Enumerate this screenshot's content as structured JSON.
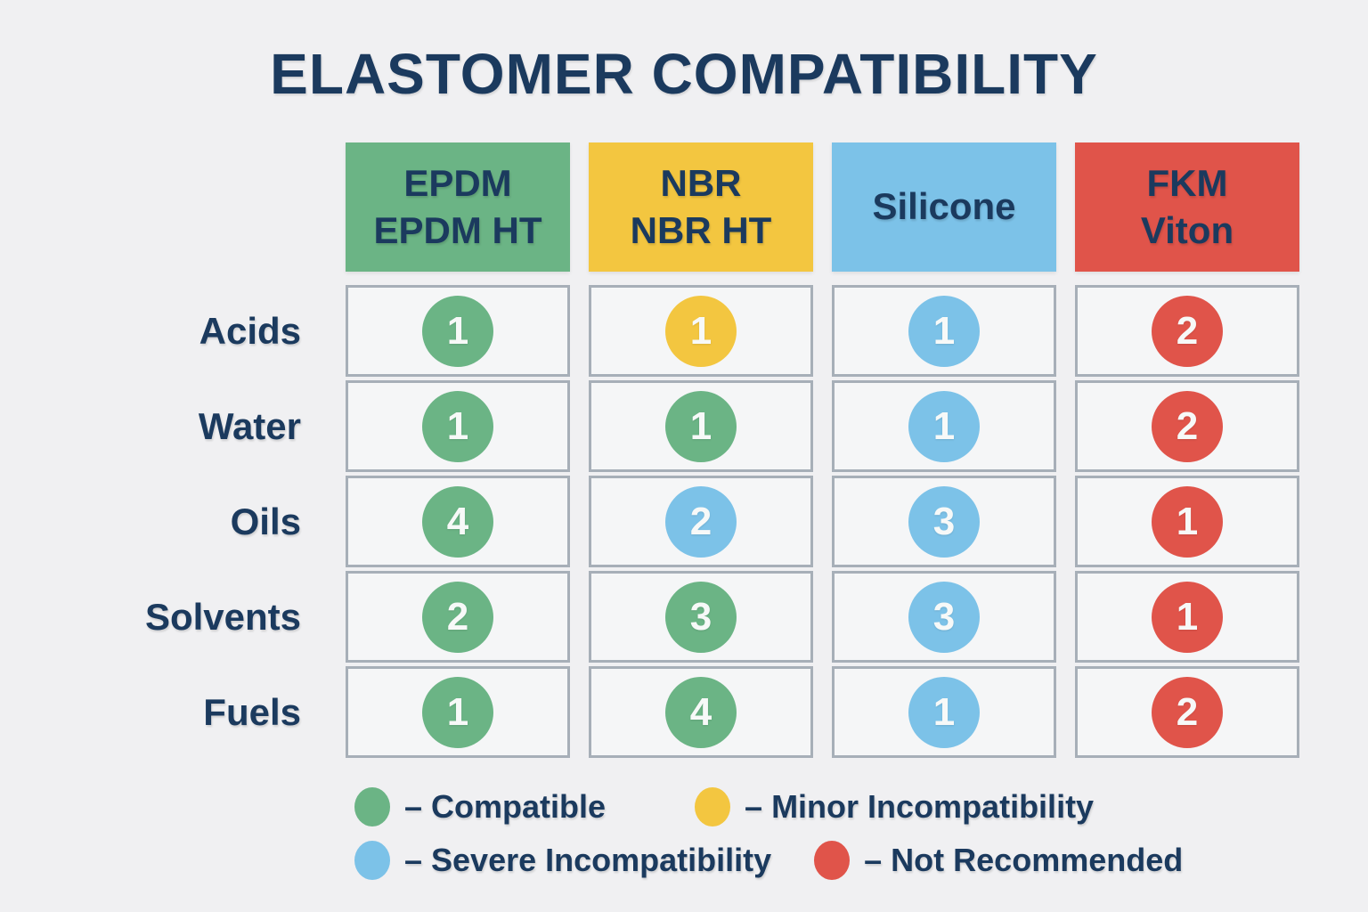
{
  "title": "ELASTOMER COMPATIBILITY",
  "colors": {
    "green": "#6bb485",
    "yellow": "#f3c640",
    "blue": "#7cc2e8",
    "red": "#e0544a",
    "navy": "#1b3a5e",
    "cell_background": "#f5f6f7",
    "cell_border": "#a7afb8",
    "page_background": "#f0f0f2"
  },
  "chart_data": {
    "type": "table",
    "title": "ELASTOMER COMPATIBILITY",
    "columns": [
      {
        "id": "epdm",
        "label": "EPDM\nEPDM HT",
        "color": "green"
      },
      {
        "id": "nbr",
        "label": "NBR\nNBR HT",
        "color": "yellow"
      },
      {
        "id": "silicone",
        "label": "Silicone",
        "color": "blue"
      },
      {
        "id": "fkm",
        "label": "FKM\nViton",
        "color": "red"
      }
    ],
    "rows": [
      "Acids",
      "Water",
      "Oils",
      "Solvents",
      "Fuels"
    ],
    "cells": [
      [
        {
          "value": "1",
          "color": "green"
        },
        {
          "value": "1",
          "color": "yellow"
        },
        {
          "value": "1",
          "color": "blue"
        },
        {
          "value": "2",
          "color": "red"
        }
      ],
      [
        {
          "value": "1",
          "color": "green"
        },
        {
          "value": "1",
          "color": "green"
        },
        {
          "value": "1",
          "color": "blue"
        },
        {
          "value": "2",
          "color": "red"
        }
      ],
      [
        {
          "value": "4",
          "color": "green"
        },
        {
          "value": "2",
          "color": "blue"
        },
        {
          "value": "3",
          "color": "blue"
        },
        {
          "value": "1",
          "color": "red"
        }
      ],
      [
        {
          "value": "2",
          "color": "green"
        },
        {
          "value": "3",
          "color": "green"
        },
        {
          "value": "3",
          "color": "blue"
        },
        {
          "value": "1",
          "color": "red"
        }
      ],
      [
        {
          "value": "1",
          "color": "green"
        },
        {
          "value": "4",
          "color": "green"
        },
        {
          "value": "1",
          "color": "blue"
        },
        {
          "value": "2",
          "color": "red"
        }
      ]
    ],
    "legend": [
      {
        "color": "green",
        "label": "– Compatible"
      },
      {
        "color": "yellow",
        "label": "– Minor Incompatibility"
      },
      {
        "color": "blue",
        "label": "– Severe Incompatibility"
      },
      {
        "color": "red",
        "label": "– Not Recommended"
      }
    ],
    "legend_layout_rows": [
      [
        0,
        1
      ],
      [
        2,
        3
      ]
    ]
  }
}
